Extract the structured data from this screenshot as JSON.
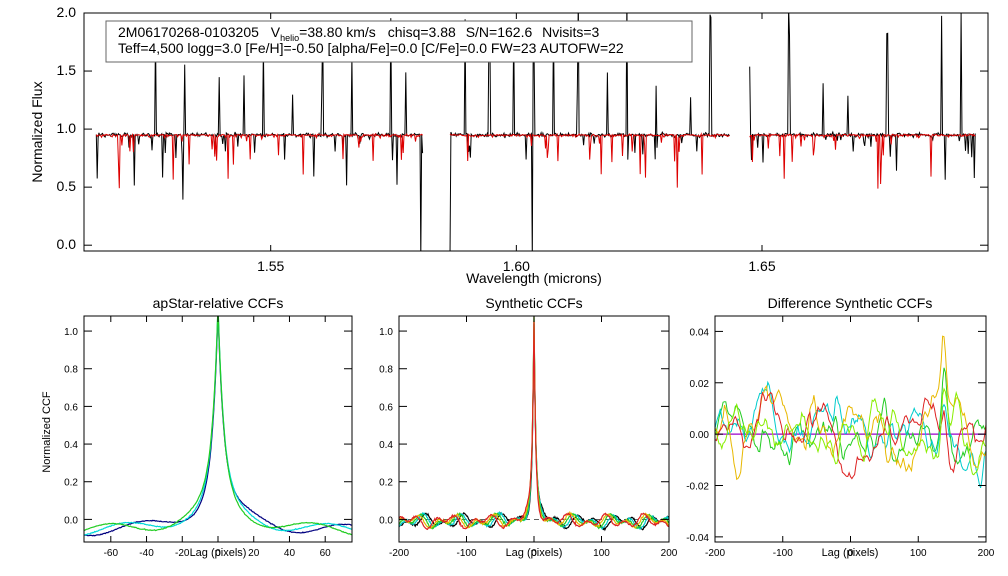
{
  "info_box": {
    "star_id": "2M06170268-0103205",
    "vhelio_prefix": "V",
    "vhelio_sub": "helio",
    "vhelio_value": "=38.80 km/s",
    "chisq": "chisq=3.88",
    "snr": "S/N=162.6",
    "nvisits": "Nvisits=3",
    "line2": "Teff=4,500 logg=3.0 [Fe/H]=-0.50 [alpha/Fe]=0.0 [C/Fe]=0.0 FW=23 AUTOFW=22"
  },
  "chart_data": [
    {
      "id": "spectrum",
      "type": "line",
      "title": "",
      "xlabel": "Wavelength (microns)",
      "ylabel": "Normalized Flux",
      "xlim": [
        1.512,
        1.696
      ],
      "ylim": [
        -0.05,
        2.0
      ],
      "x_ticks": [
        1.55,
        1.6,
        1.65
      ],
      "x_tick_labels": [
        "1.55",
        "1.60",
        "1.65"
      ],
      "y_ticks": [
        0.0,
        0.5,
        1.0,
        1.5,
        2.0
      ],
      "y_tick_labels": [
        "0.0",
        "0.5",
        "1.0",
        "1.5",
        "2.0"
      ],
      "continuum": 0.95,
      "chip_ranges": [
        [
          1.5145,
          1.581
        ],
        [
          1.5865,
          1.6435
        ],
        [
          1.6475,
          1.6935
        ]
      ],
      "series": [
        {
          "role": "observed",
          "color": "#000000"
        },
        {
          "role": "model",
          "color": "#dd0000"
        }
      ],
      "emission_spikes": [
        1.5265,
        1.5325,
        1.5395,
        1.5445,
        1.5485,
        1.5545,
        1.5605,
        1.5665,
        1.5745,
        1.5775,
        1.5895,
        1.5945,
        1.5995,
        1.6035,
        1.6075,
        1.6125,
        1.6185,
        1.6225,
        1.6285,
        1.6355,
        1.6395,
        1.6475,
        1.6555,
        1.6625,
        1.6675,
        1.6755,
        1.6865,
        1.6905
      ],
      "deep_drops": [
        1.5142,
        1.5805,
        1.5812,
        1.5865,
        1.6032
      ]
    },
    {
      "id": "apstar_ccf",
      "type": "line",
      "title": "apStar-relative CCFs",
      "xlabel": "Lag (pixels)",
      "ylabel": "Normalized CCF",
      "xlim": [
        -75,
        75
      ],
      "ylim": [
        -0.12,
        1.08
      ],
      "x_ticks": [
        -60,
        -40,
        -20,
        0,
        20,
        40,
        60
      ],
      "x_tick_labels": [
        "-60",
        "-40",
        "-20",
        "0",
        "20",
        "40",
        "60"
      ],
      "y_ticks": [
        0.0,
        0.2,
        0.4,
        0.6,
        0.8,
        1.0
      ],
      "y_tick_labels": [
        "0.0",
        "0.2",
        "0.4",
        "0.6",
        "0.8",
        "1.0"
      ],
      "series": [
        {
          "color": "#000080"
        },
        {
          "color": "#00d8d8"
        },
        {
          "color": "#22cc22"
        }
      ]
    },
    {
      "id": "synthetic_ccf",
      "type": "line",
      "title": "Synthetic CCFs",
      "xlabel": "Lag (pixels)",
      "ylabel": "",
      "xlim": [
        -200,
        200
      ],
      "ylim": [
        -0.12,
        1.08
      ],
      "x_ticks": [
        -200,
        -100,
        0,
        100,
        200
      ],
      "x_tick_labels": [
        "-200",
        "-100",
        "0",
        "100",
        "200"
      ],
      "y_ticks": [
        0.0,
        0.2,
        0.4,
        0.6,
        0.8,
        1.0
      ],
      "y_tick_labels": [
        "0.0",
        "0.2",
        "0.4",
        "0.6",
        "0.8",
        "1.0"
      ],
      "series": [
        {
          "color": "#000000"
        },
        {
          "color": "#00cccc"
        },
        {
          "color": "#22cc22"
        },
        {
          "color": "#e8b800"
        },
        {
          "color": "#dd2222"
        }
      ]
    },
    {
      "id": "diff_ccf",
      "type": "line",
      "title": "Difference Synthetic CCFs",
      "xlabel": "Lag (pixels)",
      "ylabel": "",
      "xlim": [
        -200,
        200
      ],
      "ylim": [
        -0.042,
        0.046
      ],
      "x_ticks": [
        -200,
        -100,
        0,
        100,
        200
      ],
      "x_tick_labels": [
        "-200",
        "-100",
        "0",
        "100",
        "200"
      ],
      "y_ticks": [
        -0.04,
        -0.02,
        0.0,
        0.02,
        0.04
      ],
      "y_tick_labels": [
        "-0.04",
        "-0.02",
        "0.00",
        "0.02",
        "0.04"
      ],
      "zero_line_color": "#9900cc",
      "series": [
        {
          "color": "#22cc22"
        },
        {
          "color": "#00cccc"
        },
        {
          "color": "#e8b800"
        },
        {
          "color": "#dd2222"
        },
        {
          "color": "#88ee00"
        }
      ]
    }
  ]
}
